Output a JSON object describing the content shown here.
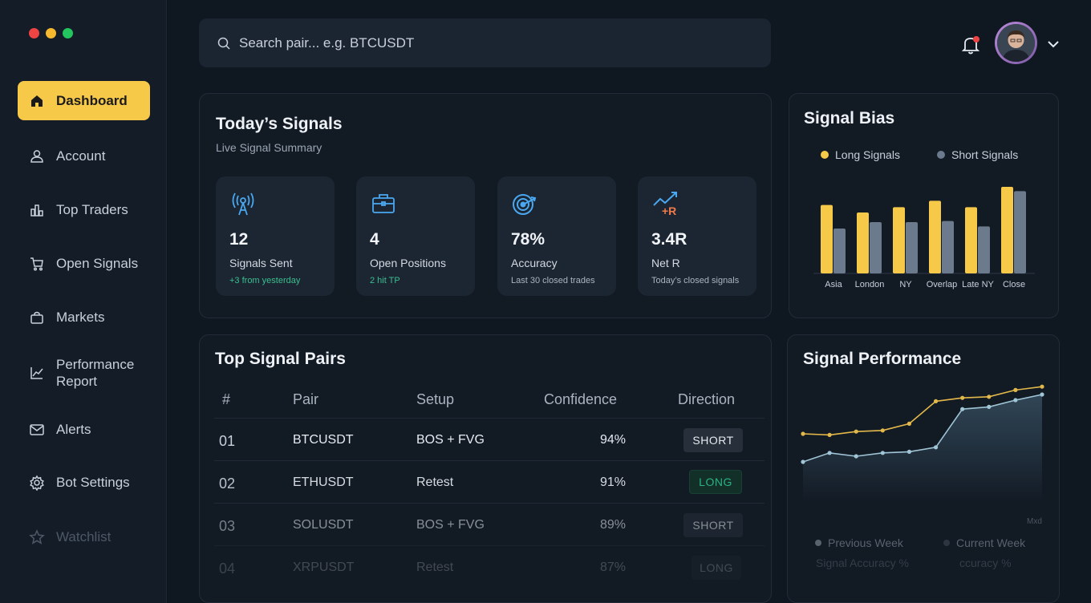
{
  "sidebar": {
    "traffic_colors": [
      "#ef4444",
      "#f5b82e",
      "#22c55e"
    ],
    "items": [
      {
        "label": "Dashboard",
        "icon": "home-icon"
      },
      {
        "label": "Account",
        "icon": "user-icon"
      },
      {
        "label": "Top Traders",
        "icon": "bar-chart-icon"
      },
      {
        "label": "Open Signals",
        "icon": "cart-icon"
      },
      {
        "label": "Markets",
        "icon": "bag-icon"
      },
      {
        "label": "Performance Report",
        "icon": "line-chart-icon"
      },
      {
        "label": "Alerts",
        "icon": "mail-icon"
      },
      {
        "label": "Bot Settings",
        "icon": "gear-icon"
      },
      {
        "label": "Watchlist",
        "icon": "star-icon"
      }
    ]
  },
  "header": {
    "search_placeholder": "Search pair... e.g. BTCUSDT"
  },
  "todays_signals": {
    "title": "Today’s Signals",
    "subtitle": "Live Signal Summary",
    "stats": [
      {
        "icon": "antenna-icon",
        "value": "12",
        "label": "Signals Sent",
        "note": "+3 from yesterday"
      },
      {
        "icon": "briefcase-icon",
        "value": "4",
        "label": "Open Positions",
        "note": "2 hit TP"
      },
      {
        "icon": "target-icon",
        "value": "78%",
        "label": "Accuracy",
        "note": "Last 30 closed trades"
      },
      {
        "icon": "trend-up-icon",
        "value": "3.4R",
        "label": "Net R",
        "note": "Today’s closed signals"
      }
    ],
    "netr_glyph": "+R"
  },
  "signal_bias": {
    "title": "Signal Bias",
    "legend": [
      "Long Signals",
      "Short Signals"
    ],
    "colors": {
      "long": "#f7c948",
      "short": "#6b7a8c"
    }
  },
  "top_pairs": {
    "title": "Top Signal Pairs",
    "columns": [
      "#",
      "Pair",
      "Setup",
      "Confidence",
      "Direction"
    ],
    "rows": [
      {
        "num": "01",
        "pair": "BTCUSDT",
        "setup": "BOS + FVG",
        "confidence": "94%",
        "direction": "SHORT"
      },
      {
        "num": "02",
        "pair": "ETHUSDT",
        "setup": "Retest",
        "confidence": "91%",
        "direction": "LONG"
      },
      {
        "num": "03",
        "pair": "SOLUSDT",
        "setup": "BOS + FVG",
        "confidence": "89%",
        "direction": "SHORT"
      },
      {
        "num": "04",
        "pair": "XRPUSDT",
        "setup": "Retest",
        "confidence": "87%",
        "direction": "LONG"
      }
    ]
  },
  "signal_performance": {
    "title": "Signal Performance",
    "corner_label": "Mxd",
    "legend": [
      "Previous Week",
      "Current Week"
    ],
    "legend_sub": [
      "Signal Accuracy %",
      "ccuracy %"
    ]
  },
  "chart_data": [
    {
      "type": "bar",
      "title": "Signal Bias",
      "categories": [
        "Asia",
        "London",
        "NY",
        "Overlap",
        "Late NY",
        "Close"
      ],
      "series": [
        {
          "name": "Long Signals",
          "values": [
            64,
            57,
            62,
            68,
            62,
            81
          ]
        },
        {
          "name": "Short Signals",
          "values": [
            42,
            48,
            48,
            49,
            44,
            77
          ]
        }
      ],
      "ylim": [
        0,
        90
      ],
      "legend_position": "top"
    },
    {
      "type": "line",
      "title": "Signal Performance",
      "x": [
        1,
        2,
        3,
        4,
        5,
        6,
        7,
        8,
        9,
        10
      ],
      "series": [
        {
          "name": "Previous Week",
          "color": "#e3b84a",
          "values": [
            55,
            54,
            57,
            58,
            64,
            84,
            87,
            88,
            94,
            97
          ]
        },
        {
          "name": "Current Week",
          "color": "#9fc5d6",
          "values": [
            30,
            38,
            35,
            38,
            39,
            43,
            77,
            79,
            85,
            90
          ]
        }
      ],
      "ylim": [
        0,
        100
      ],
      "legend_position": "bottom"
    }
  ]
}
